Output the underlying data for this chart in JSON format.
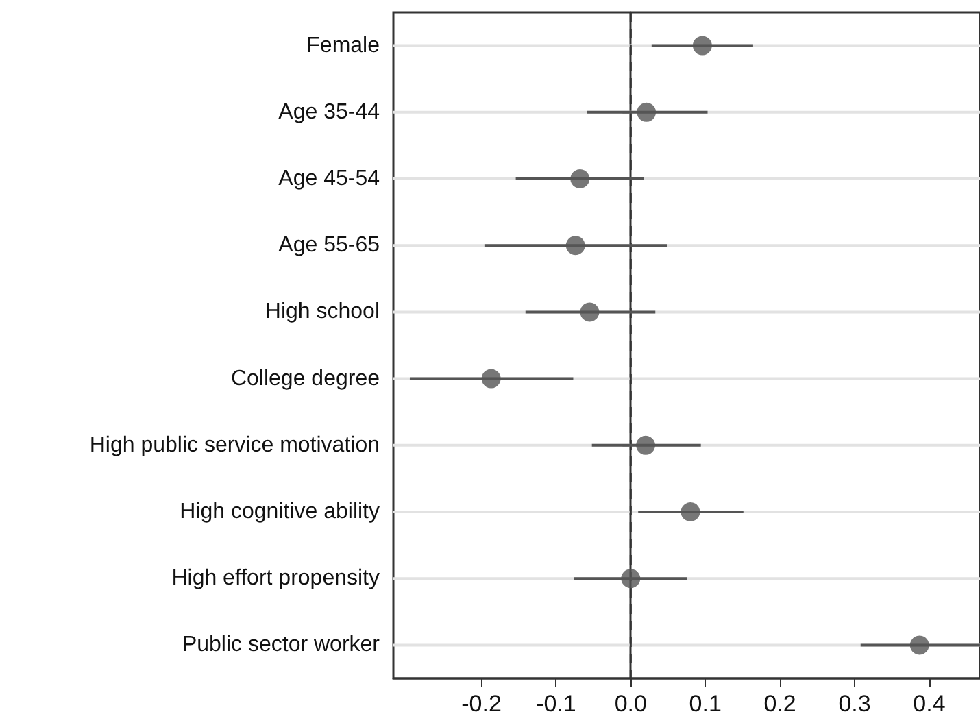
{
  "chart_data": {
    "type": "scatter",
    "orientation": "horizontal",
    "categories": [
      "Female",
      "Age 35-44",
      "Age 45-54",
      "Age 55-65",
      "High school",
      "College degree",
      "High public service motivation",
      "High cognitive ability",
      "High effort propensity",
      "Public sector worker"
    ],
    "color": "#555555",
    "values": [
      0.096,
      0.021,
      -0.068,
      -0.074,
      -0.055,
      -0.187,
      0.02,
      0.08,
      0.0,
      0.387
    ],
    "errors": [
      [
        0.028,
        0.164
      ],
      [
        -0.059,
        0.103
      ],
      [
        -0.154,
        0.018
      ],
      [
        -0.196,
        0.049
      ],
      [
        -0.141,
        0.033
      ],
      [
        -0.296,
        -0.077
      ],
      [
        -0.052,
        0.094
      ],
      [
        0.01,
        0.151
      ],
      [
        -0.076,
        0.075
      ],
      [
        0.308,
        0.468
      ]
    ],
    "xlim": [
      -0.318,
      0.468
    ],
    "xticks": [
      -0.2,
      -0.1,
      {
        "value": 0,
        "label": "0.0"
      },
      0.1,
      0.2,
      0.3,
      0.4
    ],
    "ref_lines": [
      {
        "axis": "x",
        "value": 0,
        "color": "#333333",
        "line_style": "dashed"
      }
    ],
    "grid": "y",
    "marker": "circle"
  }
}
